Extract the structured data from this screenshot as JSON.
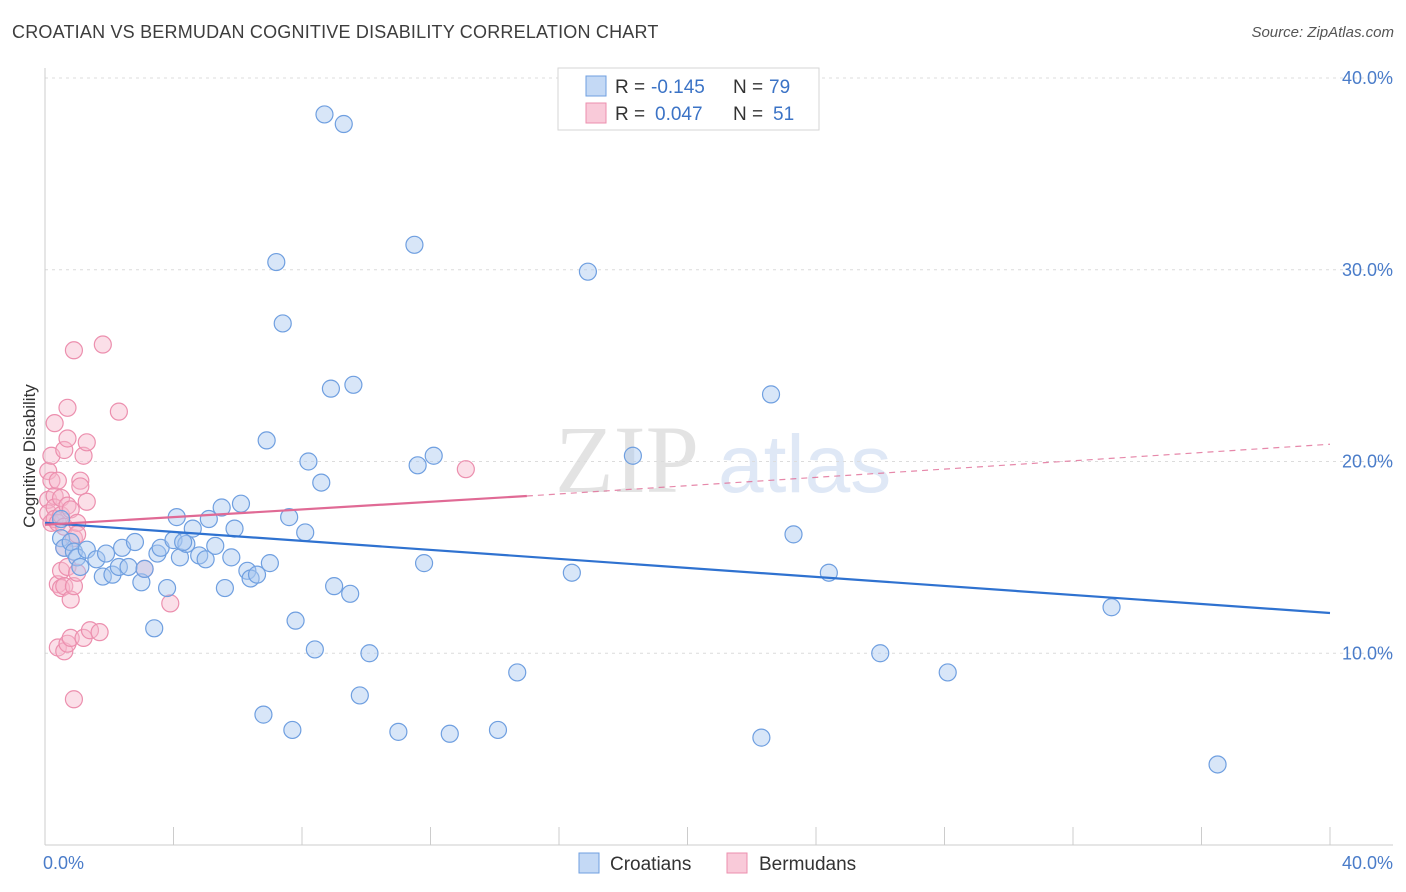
{
  "header": {
    "title": "CROATIAN VS BERMUDAN COGNITIVE DISABILITY CORRELATION CHART",
    "source": "Source: ZipAtlas.com"
  },
  "colors": {
    "croatian_fill": "#a9c8f0",
    "croatian_stroke": "#6f9fe0",
    "croatian_line": "#2f72d0",
    "bermudan_fill": "#f7b9cd",
    "bermudan_stroke": "#ec8fae",
    "bermudan_line": "#e06a95",
    "tick_label": "#4a7cc9"
  },
  "chart_data": {
    "type": "scatter",
    "title": "CROATIAN VS BERMUDAN COGNITIVE DISABILITY CORRELATION CHART",
    "ylabel": "Cognitive Disability",
    "xlabel": "",
    "xlim": [
      0,
      40
    ],
    "ylim": [
      0,
      40
    ],
    "x_tick_labels": [
      "0.0%",
      "40.0%"
    ],
    "y_tick_labels": [
      "10.0%",
      "20.0%",
      "30.0%",
      "40.0%"
    ],
    "y_ticks": [
      10,
      20,
      30,
      40
    ],
    "watermark": {
      "zip": "ZIP",
      "atlas": "atlas"
    },
    "legend": {
      "entries": [
        {
          "series": "Croatians",
          "r_label": "R =",
          "r_value": "-0.145",
          "n_label": "N =",
          "n_value": "79"
        },
        {
          "series": "Bermudans",
          "r_label": "R =",
          "r_value": "0.047",
          "n_label": "N =",
          "n_value": "51"
        }
      ]
    },
    "series": [
      {
        "name": "Croatians",
        "trend": {
          "x0": 0,
          "y0": 16.8,
          "x1": 40,
          "y1": 12.1,
          "dashed_after": null
        },
        "points": [
          [
            0.5,
            17.0
          ],
          [
            0.5,
            16.0
          ],
          [
            0.6,
            15.5
          ],
          [
            0.8,
            15.8
          ],
          [
            0.9,
            15.3
          ],
          [
            1.0,
            15.0
          ],
          [
            1.1,
            14.5
          ],
          [
            1.3,
            15.4
          ],
          [
            1.6,
            14.9
          ],
          [
            1.8,
            14.0
          ],
          [
            1.9,
            15.2
          ],
          [
            2.1,
            14.1
          ],
          [
            2.3,
            14.5
          ],
          [
            2.4,
            15.5
          ],
          [
            2.6,
            14.5
          ],
          [
            2.8,
            15.8
          ],
          [
            3.0,
            13.7
          ],
          [
            3.1,
            14.4
          ],
          [
            3.4,
            11.3
          ],
          [
            3.5,
            15.2
          ],
          [
            3.6,
            15.5
          ],
          [
            3.8,
            13.4
          ],
          [
            4.0,
            15.9
          ],
          [
            4.1,
            17.1
          ],
          [
            4.2,
            15.0
          ],
          [
            4.4,
            15.7
          ],
          [
            4.6,
            16.5
          ],
          [
            4.8,
            15.1
          ],
          [
            5.0,
            14.9
          ],
          [
            5.1,
            17.0
          ],
          [
            5.3,
            15.6
          ],
          [
            5.5,
            17.6
          ],
          [
            5.6,
            13.4
          ],
          [
            5.8,
            15.0
          ],
          [
            5.9,
            16.5
          ],
          [
            6.1,
            17.8
          ],
          [
            6.3,
            14.3
          ],
          [
            6.4,
            13.9
          ],
          [
            6.6,
            14.1
          ],
          [
            6.8,
            6.8
          ],
          [
            6.9,
            21.1
          ],
          [
            7.0,
            14.7
          ],
          [
            7.2,
            30.4
          ],
          [
            7.4,
            27.2
          ],
          [
            7.6,
            17.1
          ],
          [
            7.7,
            6.0
          ],
          [
            7.8,
            11.7
          ],
          [
            8.1,
            16.3
          ],
          [
            8.2,
            20.0
          ],
          [
            8.4,
            10.2
          ],
          [
            8.6,
            18.9
          ],
          [
            8.9,
            23.8
          ],
          [
            9.0,
            13.5
          ],
          [
            9.3,
            37.6
          ],
          [
            9.5,
            13.1
          ],
          [
            9.6,
            24.0
          ],
          [
            9.8,
            7.8
          ],
          [
            10.1,
            10.0
          ],
          [
            11.0,
            5.9
          ],
          [
            11.5,
            31.3
          ],
          [
            11.6,
            19.8
          ],
          [
            11.8,
            14.7
          ],
          [
            12.1,
            20.3
          ],
          [
            12.6,
            5.8
          ],
          [
            14.1,
            6.0
          ],
          [
            14.7,
            9.0
          ],
          [
            16.4,
            14.2
          ],
          [
            16.9,
            29.9
          ],
          [
            18.3,
            20.3
          ],
          [
            22.3,
            5.6
          ],
          [
            22.6,
            23.5
          ],
          [
            23.3,
            16.2
          ],
          [
            24.4,
            14.2
          ],
          [
            26.0,
            10.0
          ],
          [
            28.1,
            9.0
          ],
          [
            33.2,
            12.4
          ],
          [
            36.5,
            4.2
          ],
          [
            8.7,
            38.1
          ],
          [
            4.3,
            15.8
          ]
        ]
      },
      {
        "name": "Bermudans",
        "trend": {
          "x0": 0,
          "y0": 16.7,
          "x1": 15,
          "y1": 18.2,
          "dashed_to_x": 40,
          "dashed_to_y": 20.9
        },
        "points": [
          [
            0.1,
            19.5
          ],
          [
            0.1,
            18.0
          ],
          [
            0.1,
            17.3
          ],
          [
            0.2,
            19.0
          ],
          [
            0.2,
            20.3
          ],
          [
            0.2,
            16.8
          ],
          [
            0.3,
            22.0
          ],
          [
            0.3,
            18.2
          ],
          [
            0.3,
            17.6
          ],
          [
            0.3,
            17.0
          ],
          [
            0.4,
            19.0
          ],
          [
            0.4,
            16.8
          ],
          [
            0.4,
            13.6
          ],
          [
            0.4,
            10.3
          ],
          [
            0.5,
            18.1
          ],
          [
            0.5,
            17.2
          ],
          [
            0.5,
            14.3
          ],
          [
            0.5,
            13.4
          ],
          [
            0.6,
            20.6
          ],
          [
            0.6,
            16.6
          ],
          [
            0.6,
            13.5
          ],
          [
            0.6,
            10.1
          ],
          [
            0.6,
            15.5
          ],
          [
            0.7,
            21.2
          ],
          [
            0.7,
            22.8
          ],
          [
            0.7,
            17.7
          ],
          [
            0.7,
            14.5
          ],
          [
            0.7,
            10.5
          ],
          [
            0.8,
            17.5
          ],
          [
            0.8,
            12.8
          ],
          [
            0.8,
            10.8
          ],
          [
            0.9,
            25.8
          ],
          [
            0.9,
            16.0
          ],
          [
            0.9,
            13.5
          ],
          [
            0.9,
            7.6
          ],
          [
            1.0,
            16.8
          ],
          [
            1.0,
            16.2
          ],
          [
            1.0,
            14.2
          ],
          [
            1.1,
            19.0
          ],
          [
            1.1,
            18.7
          ],
          [
            1.2,
            10.8
          ],
          [
            1.2,
            20.3
          ],
          [
            1.3,
            21.0
          ],
          [
            1.3,
            17.9
          ],
          [
            1.4,
            11.2
          ],
          [
            1.7,
            11.1
          ],
          [
            1.8,
            26.1
          ],
          [
            2.3,
            22.6
          ],
          [
            3.1,
            14.4
          ],
          [
            3.9,
            12.6
          ],
          [
            13.1,
            19.6
          ]
        ]
      }
    ]
  },
  "legend_bottom": {
    "items": [
      {
        "label": "Croatians"
      },
      {
        "label": "Bermudans"
      }
    ]
  }
}
